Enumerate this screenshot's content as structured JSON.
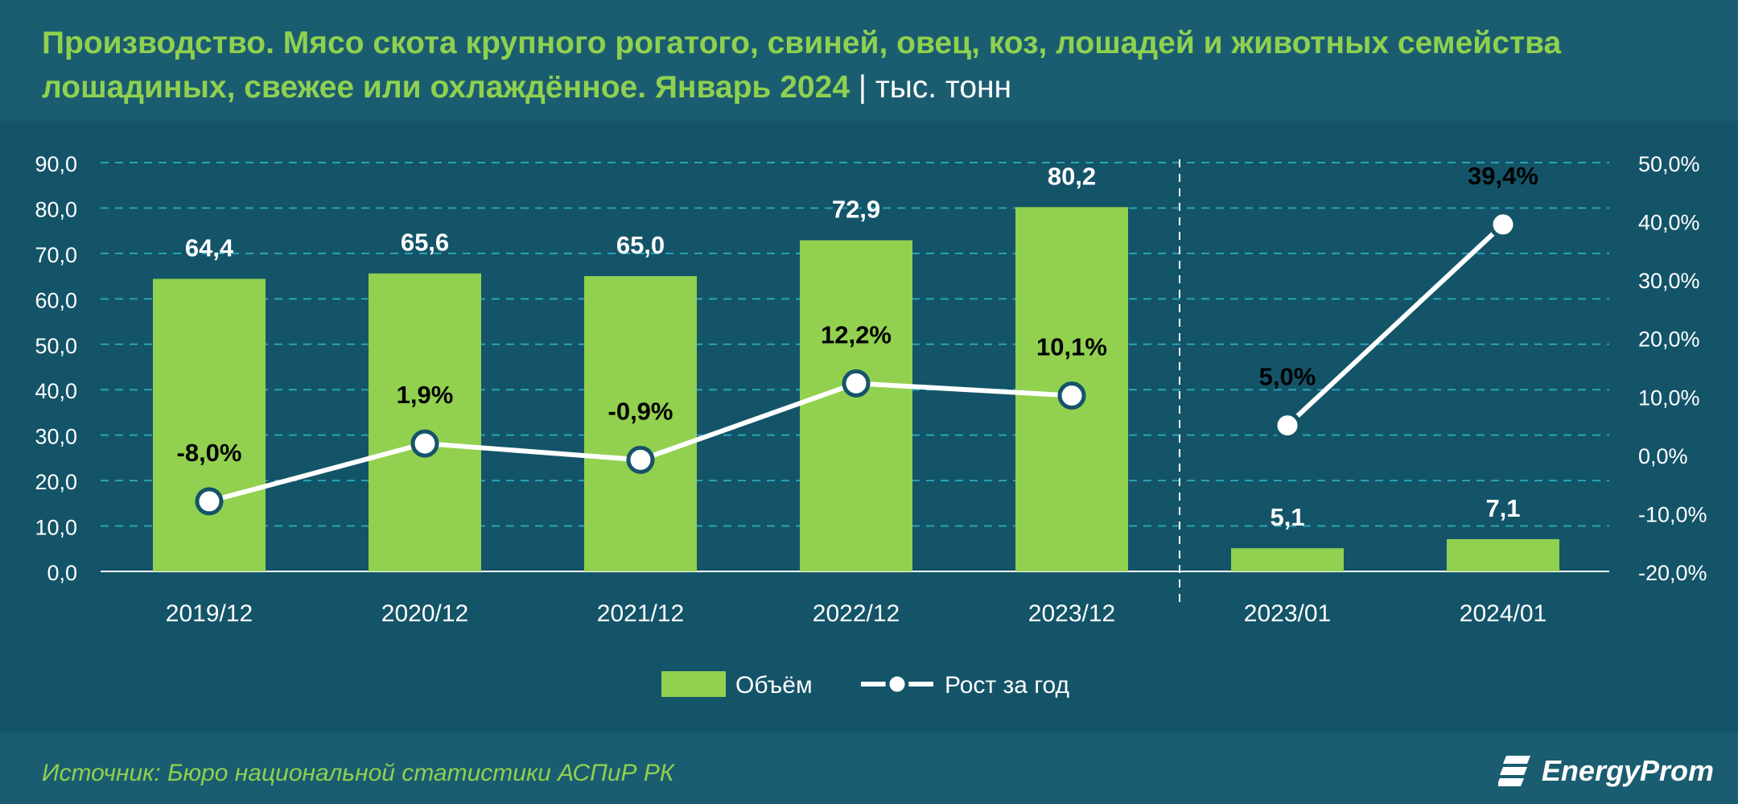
{
  "header": {
    "title": "Производство. Мясо скота крупного рогатого, свиней, овец, коз, лошадей и животных семейства лошадиных, свежее или охлаждённое. Январь 2024",
    "separator": "|",
    "unit": "тыс. тонн"
  },
  "footer": {
    "source": "Источник: Бюро национальной статистики АСПиР РК",
    "logo_text": "EnergyProm"
  },
  "colors": {
    "bar": "#92d050",
    "line": "#ffffff",
    "grid": "#2aa3b8",
    "background": "#145468",
    "title": "#8fd14f"
  },
  "chart_data": {
    "type": "bar",
    "categories": [
      "2019/12",
      "2020/12",
      "2021/12",
      "2022/12",
      "2023/12",
      "2023/01",
      "2024/01"
    ],
    "series": [
      {
        "name": "Объём",
        "type": "bar",
        "axis": "left",
        "values": [
          64.4,
          65.6,
          65.0,
          72.9,
          80.2,
          5.1,
          7.1
        ],
        "labels": [
          "64,4",
          "65,6",
          "65,0",
          "72,9",
          "80,2",
          "5,1",
          "7,1"
        ]
      },
      {
        "name": "Рост за год",
        "type": "line",
        "axis": "right",
        "values": [
          -8.0,
          1.9,
          -0.9,
          12.2,
          10.1,
          5.0,
          39.4
        ],
        "labels": [
          "-8,0%",
          "1,9%",
          "-0,9%",
          "12,2%",
          "10,1%",
          "5,0%",
          "39,4%"
        ],
        "segments": [
          [
            0,
            4
          ],
          [
            5,
            6
          ]
        ]
      }
    ],
    "y_left": {
      "range": [
        0,
        90
      ],
      "ticks": [
        "0,0",
        "10,0",
        "20,0",
        "30,0",
        "40,0",
        "50,0",
        "60,0",
        "70,0",
        "80,0",
        "90,0"
      ]
    },
    "y_right": {
      "range": [
        -20,
        50
      ],
      "ticks": [
        "-20,0%",
        "-10,0%",
        "0,0%",
        "10,0%",
        "20,0%",
        "30,0%",
        "40,0%",
        "50,0%"
      ]
    },
    "grid": true,
    "separator_between": [
      4,
      5
    ],
    "legend": {
      "position": "bottom",
      "items": [
        "Объём",
        "Рост за год"
      ]
    }
  }
}
